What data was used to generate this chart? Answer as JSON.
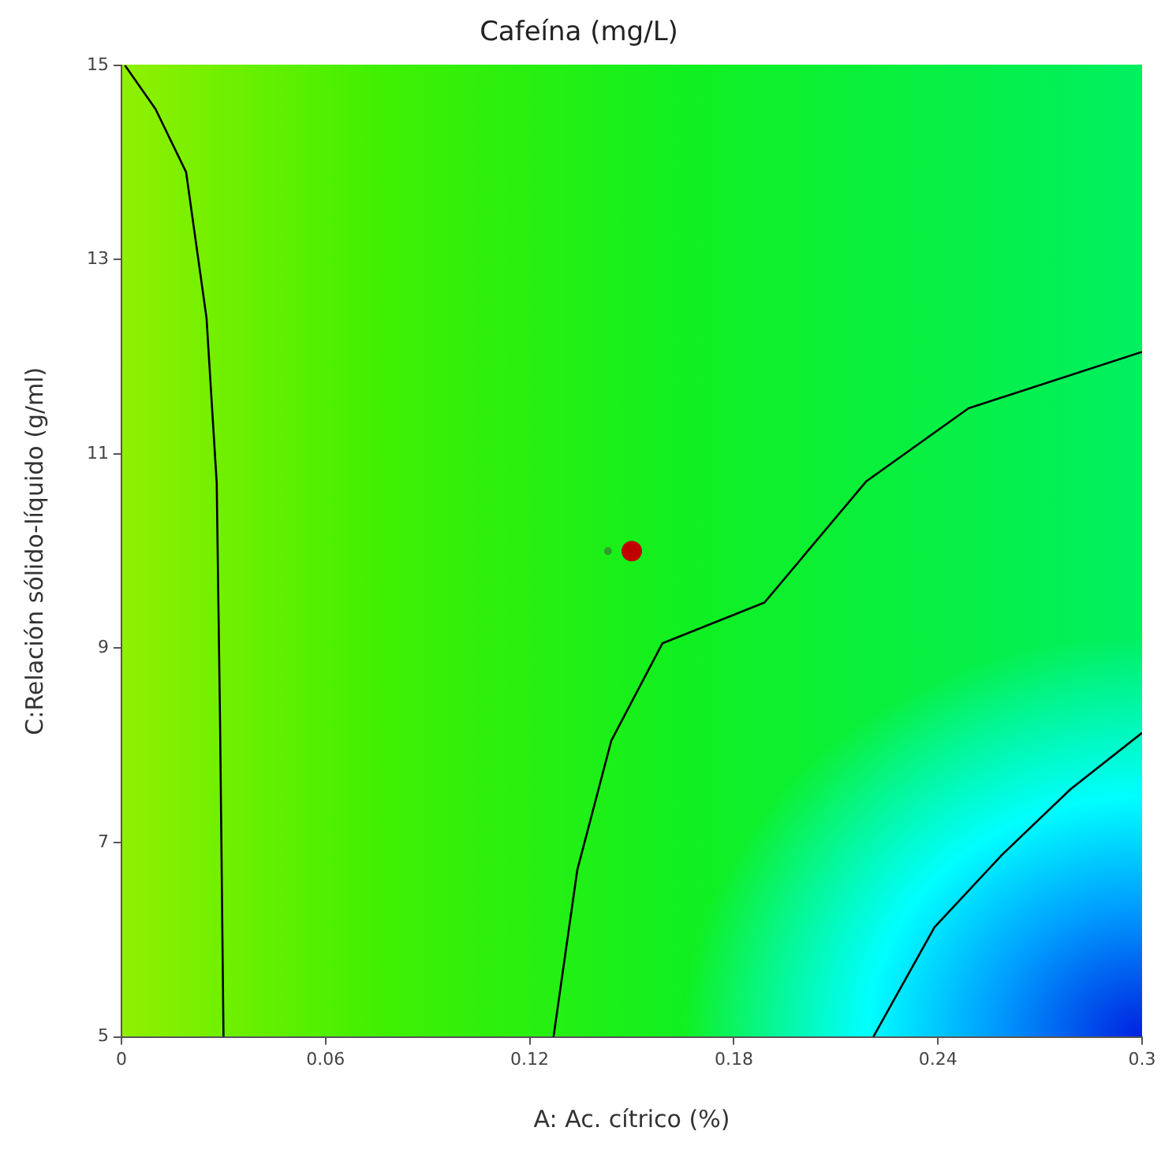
{
  "chart_data": {
    "type": "line",
    "title": "Cafeína (mg/L)",
    "xlabel": "A: Ac. cítrico (%)",
    "ylabel": "C:Relación sólido-líquido (g/ml)",
    "xlim": [
      0,
      0.3
    ],
    "xticks": [
      0,
      0.06,
      0.12,
      0.18,
      0.24,
      0.3
    ],
    "ylim": [
      5,
      15
    ],
    "yticks": [
      5,
      7,
      9,
      11,
      13,
      15
    ],
    "grid": false,
    "legend": false,
    "marker": "none",
    "line_style": "solid",
    "series": [
      {
        "color": "#000000",
        "x": [
          0.001,
          0.01,
          0.019,
          0.025,
          0.028,
          0.029,
          0.03
        ],
        "values": [
          15,
          14.55,
          13.9,
          12.4,
          10.7,
          8.2,
          5
        ]
      },
      {
        "color": "#000000",
        "x": [
          0.127,
          0.134,
          0.144,
          0.159,
          0.189,
          0.219,
          0.249,
          0.3
        ],
        "values": [
          5,
          6.72,
          8.05,
          9.05,
          9.47,
          10.72,
          11.47,
          12.05
        ]
      },
      {
        "color": "#000000",
        "x": [
          0.221,
          0.239,
          0.259,
          0.279,
          0.3
        ],
        "values": [
          5,
          6.13,
          6.88,
          7.55,
          8.13
        ]
      },
      {
        "type": "scatter",
        "marker": "circle",
        "color": "#c00000",
        "x": [
          0.15
        ],
        "values": [
          10
        ]
      },
      {
        "type": "scatter",
        "marker": "circle",
        "color": "#2e9e2e",
        "x": [
          0.143
        ],
        "values": [
          10
        ]
      }
    ]
  }
}
